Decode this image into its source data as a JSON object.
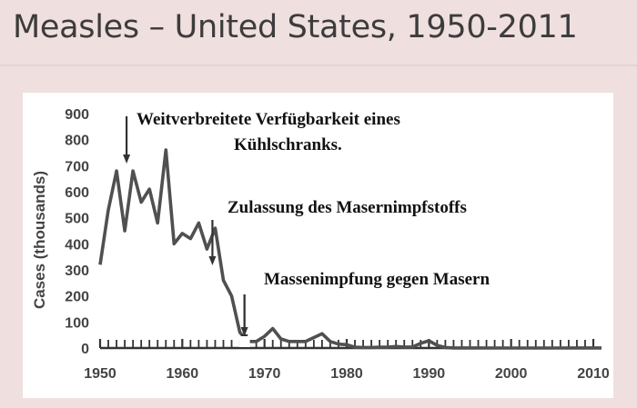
{
  "header": {
    "title": "Measles – United States, 1950-2011"
  },
  "chart_data": {
    "type": "line",
    "title": "Measles – United States, 1950-2011",
    "xlabel": "",
    "ylabel": "Cases (thousands)",
    "xlim": [
      1950,
      2011
    ],
    "ylim": [
      0,
      900
    ],
    "x_ticks": [
      "1950",
      "1960",
      "1970",
      "1980",
      "1990",
      "2000",
      "2010"
    ],
    "y_ticks": [
      "0",
      "100",
      "200",
      "300",
      "400",
      "500",
      "600",
      "700",
      "800",
      "900"
    ],
    "grid": false,
    "series": [
      {
        "color": "#505050",
        "x": [
          1950,
          1951,
          1952,
          1953,
          1954,
          1955,
          1956,
          1957,
          1958,
          1959,
          1960,
          1961,
          1962,
          1963,
          1964,
          1965,
          1966,
          1967,
          1968,
          1969,
          1970,
          1971,
          1972,
          1973,
          1974,
          1975,
          1976,
          1977,
          1978,
          1979,
          1980,
          1981,
          1982,
          1983,
          1984,
          1985,
          1986,
          1987,
          1988,
          1989,
          1990,
          1991,
          1992,
          1993,
          1995,
          2000,
          2005,
          2011
        ],
        "y": [
          320,
          530,
          680,
          450,
          680,
          560,
          610,
          480,
          760,
          400,
          440,
          420,
          480,
          380,
          460,
          260,
          200,
          60,
          25,
          25,
          45,
          75,
          35,
          25,
          25,
          25,
          40,
          55,
          25,
          15,
          13,
          3,
          2,
          2,
          3,
          3,
          6,
          4,
          4,
          18,
          28,
          10,
          2,
          0.5,
          0.3,
          0.1,
          0.1,
          0.2
        ]
      }
    ],
    "annotations": [
      {
        "lines": [
          "Weitverbreitete Verfügbarkeit eines",
          "Kühlschranks."
        ],
        "x": 1953
      },
      {
        "lines": [
          "Zulassung des Masernimpfstoffs"
        ],
        "x": 1963
      },
      {
        "lines": [
          "Massenimpfung gegen Masern"
        ],
        "x": 1968
      }
    ]
  }
}
